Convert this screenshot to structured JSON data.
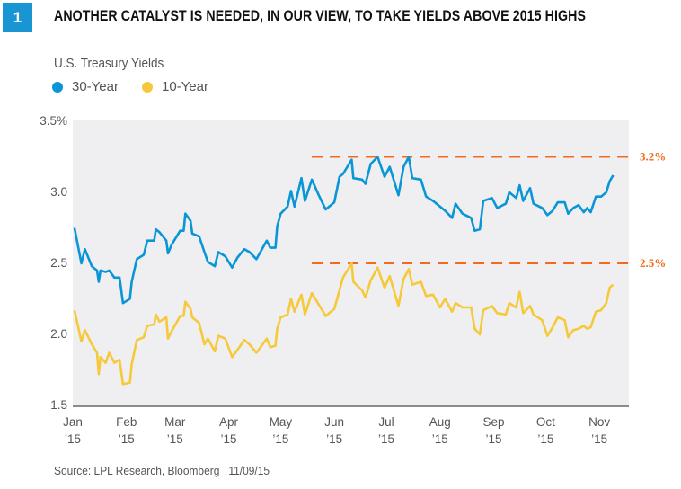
{
  "header": {
    "figure_number": "1",
    "title": "ANOTHER CATALYST IS NEEDED, IN OUR VIEW, TO TAKE YIELDS ABOVE 2015 HIGHS"
  },
  "source": "Source: LPL Research, Bloomberg   11/09/15",
  "colors": {
    "badge": "#1a95d4",
    "series_30y": "#0a96d6",
    "series_10y": "#f5c93a",
    "reference": "#f26b1d",
    "plot_bg": "#efeff1"
  },
  "chart_data": {
    "type": "line",
    "title": "U.S. Treasury Yields",
    "ylim": [
      1.5,
      3.5
    ],
    "xlim": [
      "2015-01-01",
      "2015-11-19"
    ],
    "grid": false,
    "legend": "top-left",
    "y_ticks": [
      {
        "value": 3.5,
        "label": "3.5%"
      },
      {
        "value": 3.0,
        "label": "3.0"
      },
      {
        "value": 2.5,
        "label": "2.5"
      },
      {
        "value": 2.0,
        "label": "2.0"
      },
      {
        "value": 1.5,
        "label": "1.5"
      }
    ],
    "x_ticks": [
      {
        "date": "2015-01-01",
        "label": "Jan",
        "year": "’15"
      },
      {
        "date": "2015-02-01",
        "label": "Feb",
        "year": "’15"
      },
      {
        "date": "2015-03-01",
        "label": "Mar",
        "year": "’15"
      },
      {
        "date": "2015-04-01",
        "label": "Apr",
        "year": "’15"
      },
      {
        "date": "2015-05-01",
        "label": "May",
        "year": "’15"
      },
      {
        "date": "2015-06-01",
        "label": "Jun",
        "year": "’15"
      },
      {
        "date": "2015-07-01",
        "label": "Jul",
        "year": "’15"
      },
      {
        "date": "2015-08-01",
        "label": "Aug",
        "year": "’15"
      },
      {
        "date": "2015-09-01",
        "label": "Sep",
        "year": "’15"
      },
      {
        "date": "2015-10-01",
        "label": "Oct",
        "year": "’15"
      },
      {
        "date": "2015-11-01",
        "label": "Nov",
        "year": "’15"
      }
    ],
    "reference_lines": [
      {
        "value": 3.25,
        "label": "3.2%",
        "start": "2015-05-19"
      },
      {
        "value": 2.5,
        "label": "2.5%",
        "start": "2015-05-19"
      }
    ],
    "dates": [
      "2015-01-02",
      "2015-01-06",
      "2015-01-08",
      "2015-01-12",
      "2015-01-15",
      "2015-01-16",
      "2015-01-17",
      "2015-01-20",
      "2015-01-22",
      "2015-01-25",
      "2015-01-28",
      "2015-01-30",
      "2015-02-03",
      "2015-02-04",
      "2015-02-07",
      "2015-02-11",
      "2015-02-13",
      "2015-02-17",
      "2015-02-18",
      "2015-02-20",
      "2015-02-24",
      "2015-02-25",
      "2015-02-27",
      "2015-03-04",
      "2015-03-06",
      "2015-03-07",
      "2015-03-10",
      "2015-03-11",
      "2015-03-15",
      "2015-03-18",
      "2015-03-20",
      "2015-03-24",
      "2015-03-26",
      "2015-03-30",
      "2015-04-03",
      "2015-04-06",
      "2015-04-10",
      "2015-04-13",
      "2015-04-17",
      "2015-04-23",
      "2015-04-25",
      "2015-04-28",
      "2015-04-29",
      "2015-05-01",
      "2015-05-05",
      "2015-05-07",
      "2015-05-09",
      "2015-05-13",
      "2015-05-15",
      "2015-05-19",
      "2015-05-23",
      "2015-05-27",
      "2015-06-01",
      "2015-06-04",
      "2015-06-06",
      "2015-06-11",
      "2015-06-12",
      "2015-06-17",
      "2015-06-19",
      "2015-06-22",
      "2015-06-26",
      "2015-06-30",
      "2015-07-03",
      "2015-07-08",
      "2015-07-11",
      "2015-07-14",
      "2015-07-16",
      "2015-07-21",
      "2015-07-24",
      "2015-07-28",
      "2015-08-01",
      "2015-08-04",
      "2015-08-08",
      "2015-08-10",
      "2015-08-14",
      "2015-08-19",
      "2015-08-21",
      "2015-08-24",
      "2015-08-26",
      "2015-08-31",
      "2015-09-03",
      "2015-09-08",
      "2015-09-10",
      "2015-09-14",
      "2015-09-16",
      "2015-09-18",
      "2015-09-22",
      "2015-09-24",
      "2015-09-29",
      "2015-10-02",
      "2015-10-05",
      "2015-10-08",
      "2015-10-12",
      "2015-10-14",
      "2015-10-17",
      "2015-10-20",
      "2015-10-23",
      "2015-10-25",
      "2015-10-27",
      "2015-10-30",
      "2015-11-02",
      "2015-11-05",
      "2015-11-07",
      "2015-11-09"
    ],
    "series": [
      {
        "name": "30-Year",
        "color": "#0a96d6",
        "values": [
          2.75,
          2.5,
          2.6,
          2.48,
          2.45,
          2.37,
          2.45,
          2.44,
          2.45,
          2.4,
          2.4,
          2.22,
          2.25,
          2.37,
          2.53,
          2.56,
          2.66,
          2.66,
          2.74,
          2.72,
          2.66,
          2.57,
          2.63,
          2.73,
          2.73,
          2.85,
          2.8,
          2.71,
          2.69,
          2.58,
          2.51,
          2.48,
          2.58,
          2.55,
          2.47,
          2.54,
          2.6,
          2.58,
          2.53,
          2.66,
          2.61,
          2.61,
          2.76,
          2.85,
          2.9,
          3.01,
          2.9,
          3.1,
          2.94,
          3.09,
          2.98,
          2.88,
          2.93,
          3.11,
          3.13,
          3.23,
          3.1,
          3.09,
          3.06,
          3.2,
          3.25,
          3.11,
          3.18,
          2.98,
          3.18,
          3.25,
          3.1,
          3.09,
          2.97,
          2.94,
          2.9,
          2.87,
          2.82,
          2.92,
          2.85,
          2.82,
          2.73,
          2.74,
          2.94,
          2.96,
          2.89,
          2.92,
          3.0,
          2.96,
          3.05,
          2.94,
          3.03,
          2.92,
          2.89,
          2.84,
          2.87,
          2.93,
          2.93,
          2.85,
          2.89,
          2.91,
          2.86,
          2.89,
          2.86,
          2.97,
          2.97,
          3.0,
          3.08,
          3.12
        ]
      },
      {
        "name": "10-Year",
        "color": "#f5c93a",
        "values": [
          2.17,
          1.95,
          2.03,
          1.93,
          1.87,
          1.72,
          1.84,
          1.8,
          1.87,
          1.8,
          1.82,
          1.65,
          1.66,
          1.79,
          1.96,
          1.98,
          2.06,
          2.07,
          2.14,
          2.09,
          2.12,
          1.97,
          2.02,
          2.13,
          2.13,
          2.23,
          2.18,
          2.12,
          2.08,
          1.93,
          1.97,
          1.88,
          1.99,
          1.97,
          1.84,
          1.89,
          1.96,
          1.93,
          1.87,
          1.97,
          1.91,
          1.92,
          2.04,
          2.12,
          2.14,
          2.25,
          2.16,
          2.28,
          2.14,
          2.29,
          2.21,
          2.13,
          2.18,
          2.31,
          2.4,
          2.5,
          2.37,
          2.31,
          2.26,
          2.38,
          2.47,
          2.33,
          2.41,
          2.2,
          2.39,
          2.46,
          2.35,
          2.37,
          2.27,
          2.28,
          2.19,
          2.25,
          2.16,
          2.22,
          2.19,
          2.19,
          2.04,
          2.0,
          2.17,
          2.2,
          2.15,
          2.14,
          2.22,
          2.19,
          2.3,
          2.15,
          2.2,
          2.14,
          2.1,
          1.99,
          2.05,
          2.12,
          2.1,
          1.98,
          2.03,
          2.04,
          2.06,
          2.04,
          2.05,
          2.16,
          2.17,
          2.22,
          2.33,
          2.35
        ]
      }
    ]
  }
}
